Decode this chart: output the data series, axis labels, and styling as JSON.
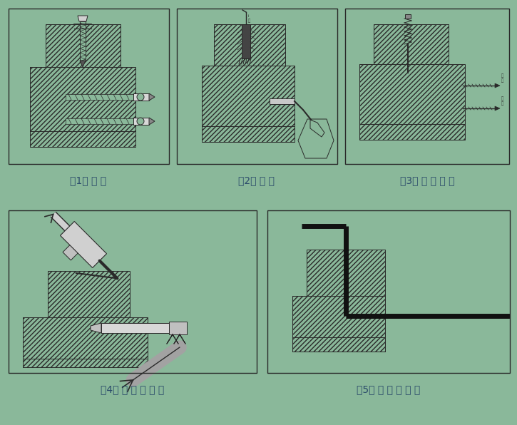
{
  "bg_color": "#8ab89a",
  "line_color": "#2a2a2a",
  "hatch_face": "#8ab89a",
  "labels": [
    "（1） 成 孔",
    "（2） 清 孔",
    "（3） 丙 酮 清 洗",
    "（4） 注 入 胶 粘 剂",
    "（5） 插 入 连 接 件"
  ],
  "figsize": [
    7.25,
    5.96
  ],
  "dpi": 100
}
